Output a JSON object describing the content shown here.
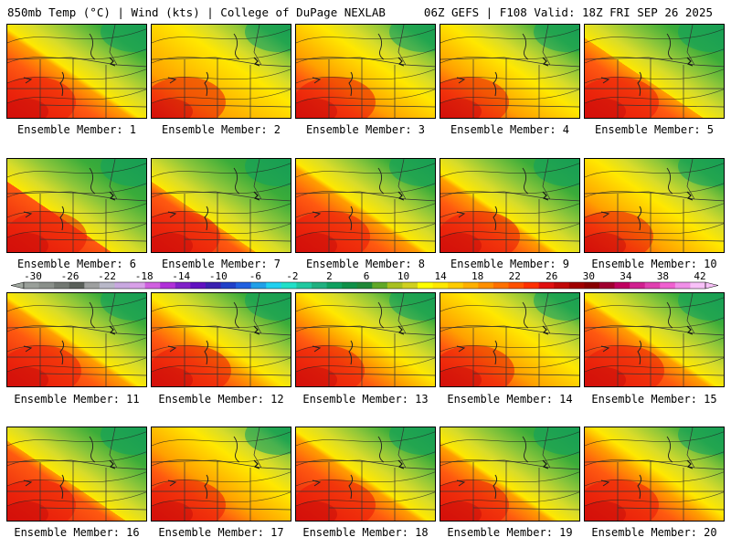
{
  "header": {
    "left": "850mb Temp (°C) | Wind (kts) | College of DuPage NEXLAB",
    "right": "06Z GEFS | F108 Valid: 18Z FRI SEP 26 2025"
  },
  "colorbar": {
    "ticks": [
      "-30",
      "-26",
      "-22",
      "-18",
      "-14",
      "-10",
      "-6",
      "-2",
      "2",
      "6",
      "10",
      "14",
      "18",
      "22",
      "26",
      "30",
      "34",
      "38",
      "42"
    ],
    "colors": [
      "#9aa09a",
      "#8a908a",
      "#727872",
      "#5a605a",
      "#9ea0a0",
      "#b8b8c8",
      "#c8a8e0",
      "#d8a0e8",
      "#d060e0",
      "#b030d8",
      "#8020c8",
      "#6010c0",
      "#3a20b0",
      "#2040c8",
      "#2060e0",
      "#20a0e8",
      "#20d0f0",
      "#20e0c8",
      "#20c8a0",
      "#20b080",
      "#10a060",
      "#109048",
      "#208838",
      "#60a828",
      "#a8c020",
      "#d0d020",
      "#ffff00",
      "#ffe800",
      "#ffcc00",
      "#ffb000",
      "#ff9000",
      "#ff7000",
      "#ff5000",
      "#ff3000",
      "#e01010",
      "#c00808",
      "#a00000",
      "#880000",
      "#a00030",
      "#c00060",
      "#d02090",
      "#e040b0",
      "#f060d0",
      "#f090e8",
      "#f8c0f8"
    ]
  },
  "panels": [
    {
      "label": "Ensemble Member: 1",
      "warm": 0.55,
      "cool": 0.3
    },
    {
      "label": "Ensemble Member: 2",
      "warm": 0.75,
      "cool": 0.2
    },
    {
      "label": "Ensemble Member: 3",
      "warm": 0.65,
      "cool": 0.2
    },
    {
      "label": "Ensemble Member: 4",
      "warm": 0.7,
      "cool": 0.25
    },
    {
      "label": "Ensemble Member: 5",
      "warm": 0.55,
      "cool": 0.35
    },
    {
      "label": "Ensemble Member: 6",
      "warm": 0.5,
      "cool": 0.4
    },
    {
      "label": "Ensemble Member: 7",
      "warm": 0.55,
      "cool": 0.4
    },
    {
      "label": "Ensemble Member: 8",
      "warm": 0.55,
      "cool": 0.3
    },
    {
      "label": "Ensemble Member: 9",
      "warm": 0.6,
      "cool": 0.35
    },
    {
      "label": "Ensemble Member: 10",
      "warm": 0.7,
      "cool": 0.25
    },
    {
      "label": "Ensemble Member: 11",
      "warm": 0.55,
      "cool": 0.3
    },
    {
      "label": "Ensemble Member: 12",
      "warm": 0.6,
      "cool": 0.3
    },
    {
      "label": "Ensemble Member: 13",
      "warm": 0.6,
      "cool": 0.25
    },
    {
      "label": "Ensemble Member: 14",
      "warm": 0.65,
      "cool": 0.2
    },
    {
      "label": "Ensemble Member: 15",
      "warm": 0.55,
      "cool": 0.3
    },
    {
      "label": "Ensemble Member: 16",
      "warm": 0.5,
      "cool": 0.35
    },
    {
      "label": "Ensemble Member: 17",
      "warm": 0.6,
      "cool": 0.15
    },
    {
      "label": "Ensemble Member: 18",
      "warm": 0.55,
      "cool": 0.3
    },
    {
      "label": "Ensemble Member: 19",
      "warm": 0.6,
      "cool": 0.35
    },
    {
      "label": "Ensemble Member: 20",
      "warm": 0.55,
      "cool": 0.25
    }
  ]
}
